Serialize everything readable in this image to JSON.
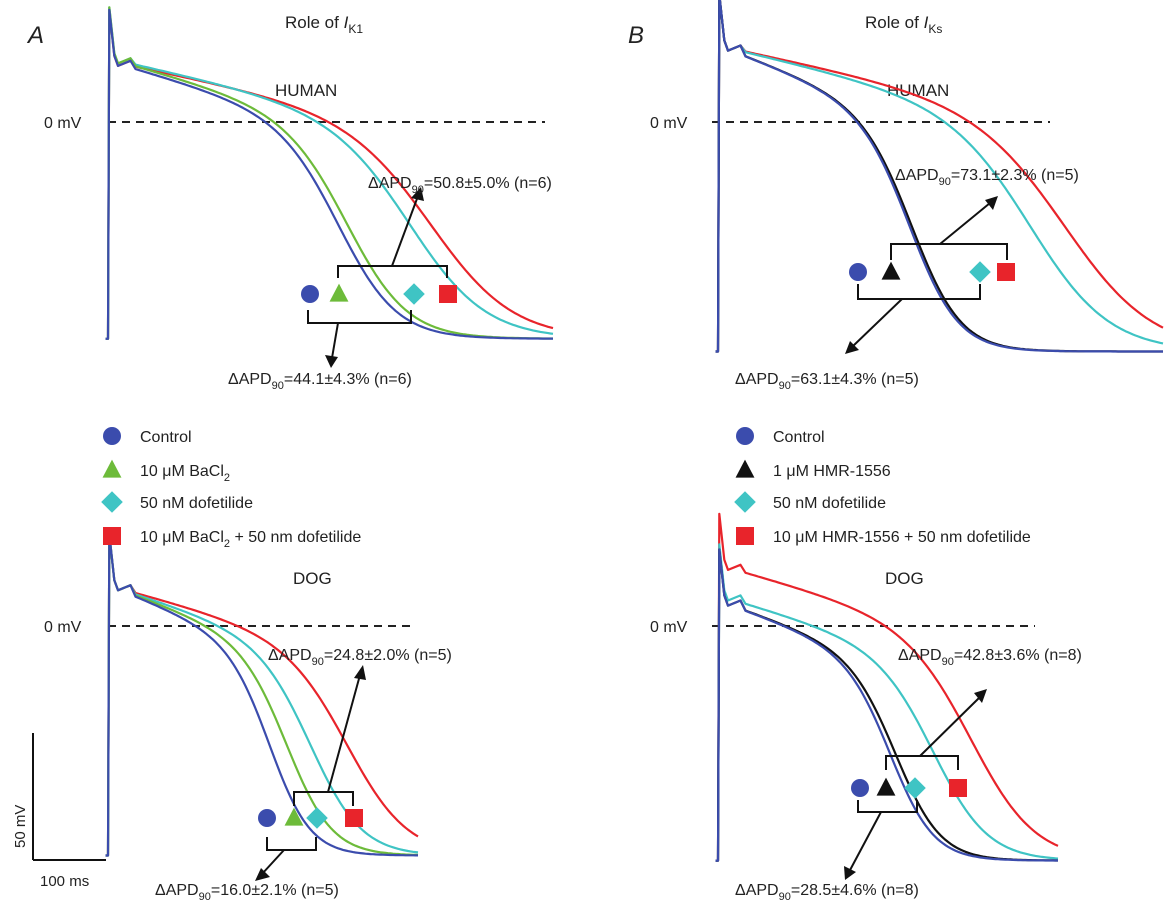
{
  "chart_data": {
    "type": "line",
    "description_axes": {
      "x_unit": "ms",
      "y_unit": "mV"
    },
    "scale_bar": {
      "voltage_label": "50 mV",
      "time_label": "100 ms",
      "voltage_mV": 50,
      "time_ms": 100
    },
    "zero_line_label": "0 mV",
    "panels": [
      {
        "letter": "A",
        "title_prefix": "Role of ",
        "title_current": "I",
        "title_sub": "K1",
        "legend": [
          {
            "marker": "circle",
            "color": "#3b4cad",
            "text": "Control"
          },
          {
            "marker": "triangle",
            "color": "#6dbb3a",
            "text": "10 μM BaCl",
            "sub": "2",
            "tail": ""
          },
          {
            "marker": "diamond",
            "color": "#3fc4c4",
            "text": "50 nM dofetilide"
          },
          {
            "marker": "square",
            "color": "#e8242b",
            "text": "10 μM BaCl",
            "sub": "2",
            "tail": " + 50 nm dofetilide"
          }
        ],
        "subplots": [
          {
            "species": "HUMAN",
            "traces": [
              {
                "name": "Control",
                "color": "#3b4cad",
                "plateau_mV": 24,
                "apd90_ms": 214
              },
              {
                "name": "10 μM BaCl2",
                "color": "#6dbb3a",
                "plateau_mV": 25,
                "apd90_ms": 222
              },
              {
                "name": "50 nM dofetilide",
                "color": "#3fc4c4",
                "plateau_mV": 25,
                "apd90_ms": 280
              },
              {
                "name": "10 μM BaCl2 + 50 nm dofetilide",
                "color": "#e8242b",
                "plateau_mV": 24,
                "apd90_ms": 300
              }
            ],
            "delta_upper": {
              "prefix": "ΔAPD",
              "sub": "90",
              "value": "=50.8±5.0% (n=6)"
            },
            "delta_lower": {
              "prefix": "ΔAPD",
              "sub": "90",
              "value": "=44.1±4.3% (n=6)"
            }
          },
          {
            "species": "DOG",
            "traces": [
              {
                "name": "Control",
                "color": "#3b4cad",
                "plateau_mV": 16,
                "apd90_ms": 150
              },
              {
                "name": "10 μM BaCl2",
                "color": "#6dbb3a",
                "plateau_mV": 16,
                "apd90_ms": 166
              },
              {
                "name": "50 nM dofetilide",
                "color": "#3fc4c4",
                "plateau_mV": 16,
                "apd90_ms": 188
              },
              {
                "name": "10 μM BaCl2 + 50 nm dofetilide",
                "color": "#e8242b",
                "plateau_mV": 16,
                "apd90_ms": 222
              }
            ],
            "delta_upper": {
              "prefix": "ΔAPD",
              "sub": "90",
              "value": "=24.8±2.0% (n=5)"
            },
            "delta_lower": {
              "prefix": "ΔAPD",
              "sub": "90",
              "value": "=16.0±2.1% (n=5)"
            }
          }
        ]
      },
      {
        "letter": "B",
        "title_prefix": "Role of ",
        "title_current": "I",
        "title_sub": "Ks",
        "legend": [
          {
            "marker": "circle",
            "color": "#3b4cad",
            "text": "Control"
          },
          {
            "marker": "triangle",
            "color": "#111111",
            "text": "1 μM HMR-1556"
          },
          {
            "marker": "diamond",
            "color": "#3fc4c4",
            "text": "50 nM dofetilide"
          },
          {
            "marker": "square",
            "color": "#e8242b",
            "text": "10 μM HMR-1556 + 50 nm dofetilide"
          }
        ],
        "subplots": [
          {
            "species": "HUMAN",
            "traces": [
              {
                "name": "Control",
                "color": "#3b4cad",
                "plateau_mV": 30,
                "apd90_ms": 178
              },
              {
                "name": "1 μM HMR-1556",
                "color": "#111111",
                "plateau_mV": 30,
                "apd90_ms": 180
              },
              {
                "name": "50 nM dofetilide",
                "color": "#3fc4c4",
                "plateau_mV": 30,
                "apd90_ms": 290
              },
              {
                "name": "10 μM HMR-1556 + 50 nm dofetilide",
                "color": "#e8242b",
                "plateau_mV": 30,
                "apd90_ms": 322
              }
            ],
            "delta_upper": {
              "prefix": "ΔAPD",
              "sub": "90",
              "value": "=73.1±2.3% (n=5)"
            },
            "delta_lower": {
              "prefix": "ΔAPD",
              "sub": "90",
              "value": "=63.1±4.3% (n=5)"
            }
          },
          {
            "species": "DOG",
            "traces": [
              {
                "name": "Control",
                "color": "#3b4cad",
                "plateau_mV": 10,
                "apd90_ms": 160
              },
              {
                "name": "1 μM HMR-1556",
                "color": "#111111",
                "plateau_mV": 10,
                "apd90_ms": 165
              },
              {
                "name": "50 nM dofetilide",
                "color": "#3fc4c4",
                "plateau_mV": 12,
                "apd90_ms": 200
              },
              {
                "name": "10 μM HMR-1556 + 50 nm dofetilide",
                "color": "#e8242b",
                "plateau_mV": 24,
                "apd90_ms": 235
              }
            ],
            "delta_upper": {
              "prefix": "ΔAPD",
              "sub": "90",
              "value": "=42.8±3.6% (n=8)"
            },
            "delta_lower": {
              "prefix": "ΔAPD",
              "sub": "90",
              "value": "=28.5±4.6% (n=8)"
            }
          }
        ]
      }
    ]
  }
}
